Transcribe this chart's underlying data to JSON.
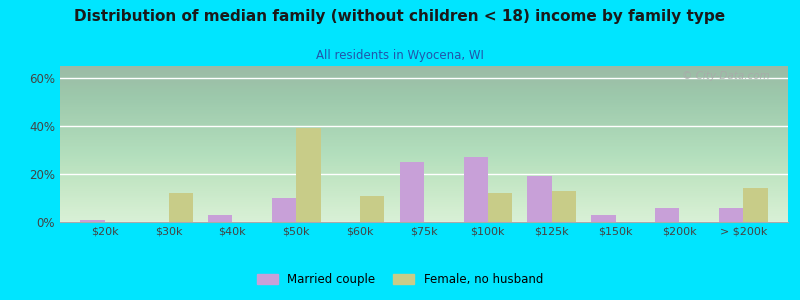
{
  "title": "Distribution of median family (without children < 18) income by family type",
  "subtitle": "All residents in Wyocena, WI",
  "categories": [
    "$20k",
    "$30k",
    "$40k",
    "$50k",
    "$60k",
    "$75k",
    "$100k",
    "$125k",
    "$150k",
    "$200k",
    "> $200k"
  ],
  "married_couple": [
    1,
    0,
    3,
    10,
    0,
    25,
    27,
    19,
    3,
    6,
    6
  ],
  "female_no_husband": [
    0,
    12,
    0,
    39,
    11,
    0,
    12,
    13,
    0,
    0,
    14
  ],
  "married_color": "#c8a0d8",
  "female_color": "#c8cc88",
  "bg_color": "#00e5ff",
  "title_color": "#1a1a1a",
  "subtitle_color": "#2255aa",
  "tick_color": "#444444",
  "legend_married": "Married couple",
  "legend_female": "Female, no husband",
  "ylim": [
    0,
    65
  ],
  "yticks": [
    0,
    20,
    40,
    60
  ],
  "ytick_labels": [
    "0%",
    "20%",
    "40%",
    "60%"
  ],
  "bar_width": 0.38,
  "watermark": "© City-Data.com"
}
